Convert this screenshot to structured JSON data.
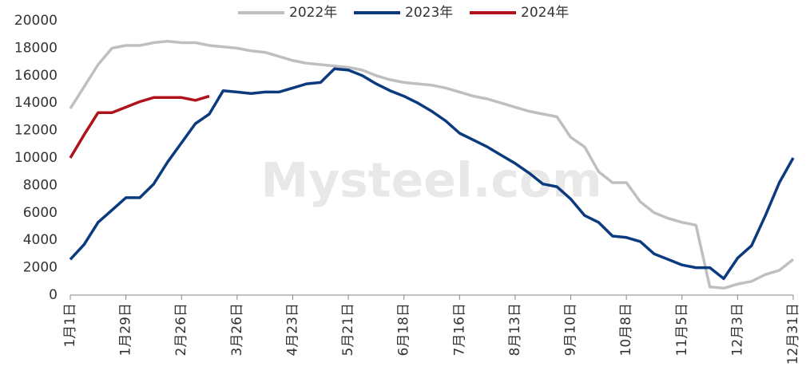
{
  "chart_data": {
    "type": "line",
    "watermark": "Mysteel.com",
    "x": [
      0,
      7,
      14,
      21,
      28,
      35,
      42,
      49,
      56,
      63,
      70,
      77,
      84,
      91,
      98,
      105,
      112,
      119,
      126,
      133,
      140,
      147,
      154,
      161,
      168,
      175,
      182,
      189,
      196,
      203,
      210,
      217,
      224,
      231,
      238,
      245,
      252,
      259,
      266,
      273,
      280,
      287,
      294,
      301,
      308,
      315,
      322,
      329,
      336,
      343,
      350,
      357,
      364
    ],
    "xlim": [
      0,
      364
    ],
    "xticks": [
      {
        "value": 0,
        "label": "1月1日"
      },
      {
        "value": 28,
        "label": "1月29日"
      },
      {
        "value": 56,
        "label": "2月26日"
      },
      {
        "value": 84,
        "label": "3月26日"
      },
      {
        "value": 112,
        "label": "4月23日"
      },
      {
        "value": 140,
        "label": "5月21日"
      },
      {
        "value": 168,
        "label": "6月18日"
      },
      {
        "value": 196,
        "label": "7月16日"
      },
      {
        "value": 224,
        "label": "8月13日"
      },
      {
        "value": 252,
        "label": "9月10日"
      },
      {
        "value": 280,
        "label": "10月8日"
      },
      {
        "value": 308,
        "label": "11月5日"
      },
      {
        "value": 336,
        "label": "12月3日"
      },
      {
        "value": 364,
        "label": "12月31日"
      }
    ],
    "ylim": [
      0,
      20000
    ],
    "yticks": [
      0,
      2000,
      4000,
      6000,
      8000,
      10000,
      12000,
      14000,
      16000,
      18000,
      20000
    ],
    "grid": false,
    "legend": "top",
    "series": [
      {
        "name": "2022年",
        "color": "#bfbfbf",
        "values": [
          13600,
          15200,
          16800,
          18000,
          18200,
          18200,
          18400,
          18500,
          18400,
          18400,
          18200,
          18100,
          18000,
          17800,
          17700,
          17400,
          17100,
          16900,
          16800,
          16700,
          16600,
          16400,
          16000,
          15700,
          15500,
          15400,
          15300,
          15100,
          14800,
          14500,
          14300,
          14000,
          13700,
          13400,
          13200,
          13000,
          11500,
          10800,
          9000,
          8200,
          8200,
          6800,
          6000,
          5600,
          5300,
          5100,
          600,
          500,
          800,
          1000,
          1500,
          1800,
          2600
        ]
      },
      {
        "name": "2023年",
        "color": "#0b3a7e",
        "values": [
          2600,
          3700,
          5300,
          6200,
          7100,
          7100,
          8100,
          9700,
          11100,
          12500,
          13200,
          14900,
          14800,
          14700,
          14800,
          14800,
          15100,
          15400,
          15500,
          16500,
          16400,
          16000,
          15400,
          14900,
          14500,
          14000,
          13400,
          12700,
          11800,
          11300,
          10800,
          10200,
          9600,
          8900,
          8100,
          7900,
          7000,
          5800,
          5300,
          4300,
          4200,
          3900,
          3000,
          2600,
          2200,
          2000,
          2000,
          1200,
          2700,
          3600,
          5800,
          8200,
          10000
        ]
      },
      {
        "name": "2024年",
        "color": "#b0121b",
        "values": [
          10000,
          11700,
          13300,
          13300,
          13700,
          14100,
          14400,
          14400,
          14400,
          14200,
          14500,
          null,
          null,
          null,
          null,
          null,
          null,
          null,
          null,
          null,
          null,
          null,
          null,
          null,
          null,
          null,
          null,
          null,
          null,
          null,
          null,
          null,
          null,
          null,
          null,
          null,
          null,
          null,
          null,
          null,
          null,
          null,
          null,
          null,
          null,
          null,
          null,
          null,
          null,
          null,
          null,
          null,
          null
        ]
      }
    ]
  }
}
